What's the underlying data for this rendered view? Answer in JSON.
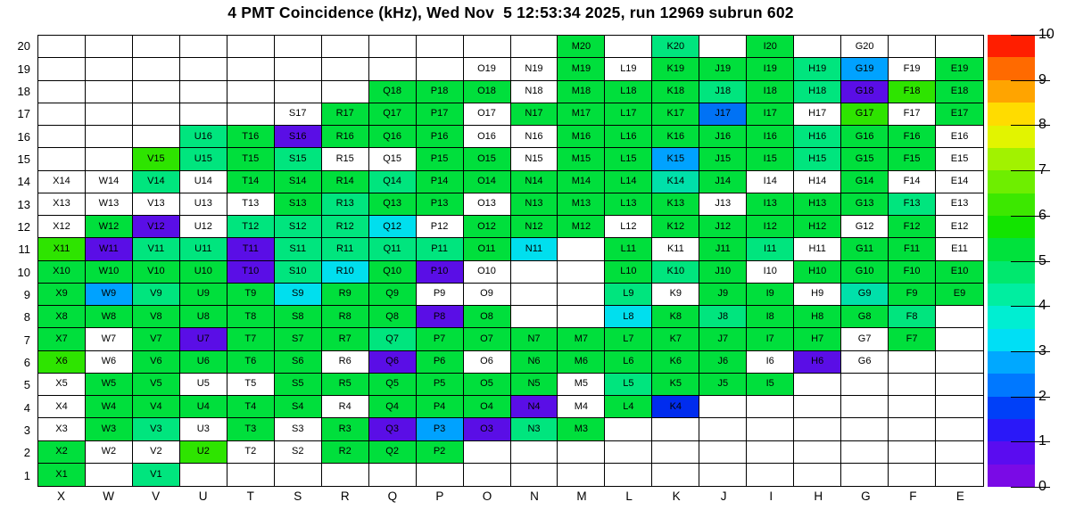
{
  "title": "4 PMT Coincidence (kHz), Wed Nov  5 12:53:34 2025, run 12969 subrun 602",
  "chart_data": {
    "type": "heatmap",
    "title": "4 PMT Coincidence (kHz), Wed Nov  5 12:53:34 2025, run 12969 subrun 602",
    "x_categories": [
      "X",
      "W",
      "V",
      "U",
      "T",
      "S",
      "R",
      "Q",
      "P",
      "O",
      "N",
      "M",
      "L",
      "K",
      "J",
      "I",
      "H",
      "G",
      "F",
      "E"
    ],
    "y_categories": [
      1,
      2,
      3,
      4,
      5,
      6,
      7,
      8,
      9,
      10,
      11,
      12,
      13,
      14,
      15,
      16,
      17,
      18,
      19,
      20
    ],
    "grid_on": true,
    "legend_position": "right",
    "colorbar": {
      "min": 0,
      "max": 10,
      "ticks": [
        0,
        1,
        2,
        3,
        4,
        5,
        6,
        7,
        8,
        9,
        10
      ],
      "band_colors_bottom_to_top": [
        "#7A0AE6",
        "#5A0CF0",
        "#2A18F8",
        "#0040F8",
        "#0078FF",
        "#00A8FF",
        "#00DFF5",
        "#00EED2",
        "#00EEA0",
        "#00E86E",
        "#00E23C",
        "#12E400",
        "#3CE800",
        "#6EEE00",
        "#A2F200",
        "#E2F400",
        "#FFDC00",
        "#FFA400",
        "#FF6A00",
        "#FF1E00"
      ]
    },
    "color_classes": {
      "w": {
        "hex": "#FFFFFF",
        "approx_kHz": 0.0
      },
      "g": {
        "hex": "#00DF3C",
        "approx_kHz": 5.1
      },
      "bg": {
        "hex": "#2EE400",
        "approx_kHz": 5.8
      },
      "sp": {
        "hex": "#00E57E",
        "approx_kHz": 4.7
      },
      "tl": {
        "hex": "#00E0AA",
        "approx_kHz": 4.1
      },
      "cy": {
        "hex": "#00DFEE",
        "approx_kHz": 3.3
      },
      "lb": {
        "hex": "#00A2FF",
        "approx_kHz": 2.8
      },
      "bl": {
        "hex": "#0072F5",
        "approx_kHz": 2.3
      },
      "db": {
        "hex": "#002CEE",
        "approx_kHz": 1.3
      },
      "pu": {
        "hex": "#5A0EE6",
        "approx_kHz": 0.6
      }
    },
    "cells_rows_top20_to_bottom1": [
      [
        "",
        "",
        "",
        "",
        "",
        "",
        "",
        "",
        "",
        "",
        "",
        "g",
        "",
        "sp",
        "",
        "g",
        "",
        "w",
        "",
        ""
      ],
      [
        "",
        "",
        "",
        "",
        "",
        "",
        "",
        "",
        "",
        "w",
        "w",
        "g",
        "w",
        "g",
        "g",
        "g",
        "sp",
        "lb",
        "w",
        "g"
      ],
      [
        "",
        "",
        "",
        "",
        "",
        "",
        "",
        "g",
        "g",
        "g",
        "w",
        "g",
        "g",
        "g",
        "sp",
        "g",
        "sp",
        "pu",
        "bg",
        "g"
      ],
      [
        "",
        "",
        "",
        "",
        "",
        "w",
        "g",
        "g",
        "g",
        "w",
        "g",
        "g",
        "g",
        "g",
        "bl",
        "g",
        "w",
        "bg",
        "w",
        "g"
      ],
      [
        "",
        "",
        "",
        "sp",
        "g",
        "pu",
        "g",
        "g",
        "g",
        "w",
        "w",
        "g",
        "g",
        "g",
        "g",
        "g",
        "sp",
        "g",
        "g",
        "w"
      ],
      [
        "",
        "",
        "bg",
        "sp",
        "g",
        "sp",
        "w",
        "w",
        "g",
        "g",
        "w",
        "g",
        "g",
        "lb",
        "g",
        "g",
        "sp",
        "g",
        "g",
        "w"
      ],
      [
        "w",
        "w",
        "sp",
        "w",
        "g",
        "g",
        "g",
        "sp",
        "g",
        "g",
        "g",
        "g",
        "g",
        "tl",
        "g",
        "w",
        "w",
        "g",
        "w",
        "w"
      ],
      [
        "w",
        "w",
        "w",
        "w",
        "w",
        "g",
        "sp",
        "g",
        "g",
        "w",
        "g",
        "g",
        "g",
        "g",
        "w",
        "g",
        "g",
        "g",
        "sp",
        "w"
      ],
      [
        "w",
        "g",
        "pu",
        "w",
        "sp",
        "sp",
        "sp",
        "cy",
        "w",
        "g",
        "g",
        "g",
        "w",
        "g",
        "g",
        "g",
        "g",
        "w",
        "g",
        "w"
      ],
      [
        "bg",
        "pu",
        "sp",
        "sp",
        "pu",
        "sp",
        "sp",
        "sp",
        "sp",
        "g",
        "cy",
        "",
        "g",
        "w",
        "g",
        "sp",
        "w",
        "g",
        "g",
        "w"
      ],
      [
        "g",
        "g",
        "g",
        "g",
        "pu",
        "sp",
        "cy",
        "g",
        "pu",
        "w",
        "",
        "",
        "g",
        "sp",
        "g",
        "w",
        "g",
        "g",
        "g",
        "g"
      ],
      [
        "g",
        "lb",
        "sp",
        "g",
        "g",
        "cy",
        "g",
        "g",
        "w",
        "w",
        "",
        "",
        "sp",
        "w",
        "g",
        "g",
        "w",
        "tl",
        "g",
        "g"
      ],
      [
        "g",
        "g",
        "g",
        "g",
        "g",
        "g",
        "g",
        "g",
        "pu",
        "g",
        "",
        "",
        "cy",
        "g",
        "sp",
        "g",
        "g",
        "g",
        "sp",
        ""
      ],
      [
        "g",
        "w",
        "g",
        "pu",
        "g",
        "g",
        "g",
        "sp",
        "g",
        "g",
        "g",
        "g",
        "g",
        "g",
        "g",
        "g",
        "g",
        "w",
        "g",
        ""
      ],
      [
        "bg",
        "w",
        "g",
        "g",
        "g",
        "g",
        "w",
        "pu",
        "g",
        "w",
        "g",
        "g",
        "g",
        "g",
        "g",
        "w",
        "pu",
        "w",
        "",
        ""
      ],
      [
        "w",
        "g",
        "g",
        "w",
        "w",
        "g",
        "g",
        "g",
        "g",
        "g",
        "g",
        "w",
        "sp",
        "g",
        "g",
        "g",
        "",
        "",
        "",
        ""
      ],
      [
        "w",
        "g",
        "g",
        "g",
        "g",
        "g",
        "w",
        "g",
        "g",
        "g",
        "pu",
        "w",
        "g",
        "db",
        "",
        "",
        "",
        "",
        "",
        ""
      ],
      [
        "w",
        "g",
        "sp",
        "w",
        "g",
        "w",
        "g",
        "pu",
        "lb",
        "pu",
        "sp",
        "g",
        "",
        "",
        "",
        "",
        "",
        "",
        "",
        ""
      ],
      [
        "g",
        "w",
        "w",
        "bg",
        "w",
        "w",
        "g",
        "g",
        "g",
        "",
        "",
        "",
        "",
        "",
        "",
        "",
        "",
        "",
        "",
        ""
      ],
      [
        "g",
        "",
        "sp",
        "",
        "",
        "",
        "",
        "",
        "",
        "",
        "",
        "",
        "",
        "",
        "",
        "",
        "",
        "",
        "",
        ""
      ]
    ]
  }
}
